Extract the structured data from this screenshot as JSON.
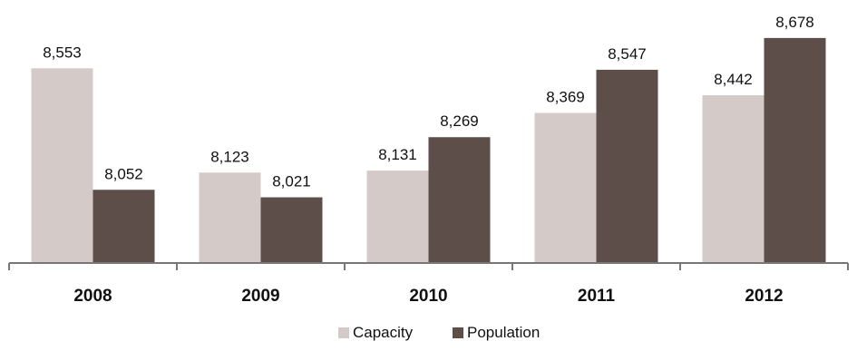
{
  "chart_data": {
    "type": "bar",
    "categories": [
      "2008",
      "2009",
      "2010",
      "2011",
      "2012"
    ],
    "series": [
      {
        "name": "Capacity",
        "values": [
          8553,
          8123,
          8131,
          8369,
          8442
        ],
        "labels": [
          "8,553",
          "8,123",
          "8,131",
          "8,369",
          "8,442"
        ],
        "color": "#d4cac8"
      },
      {
        "name": "Population",
        "values": [
          8052,
          8021,
          8269,
          8547,
          8678
        ],
        "labels": [
          "8,052",
          "8,021",
          "8,269",
          "8,547",
          "8,678"
        ],
        "color": "#5e4e4a"
      }
    ],
    "ylim": [
      7750,
      8700
    ],
    "legend": "bottom",
    "grid": false
  }
}
